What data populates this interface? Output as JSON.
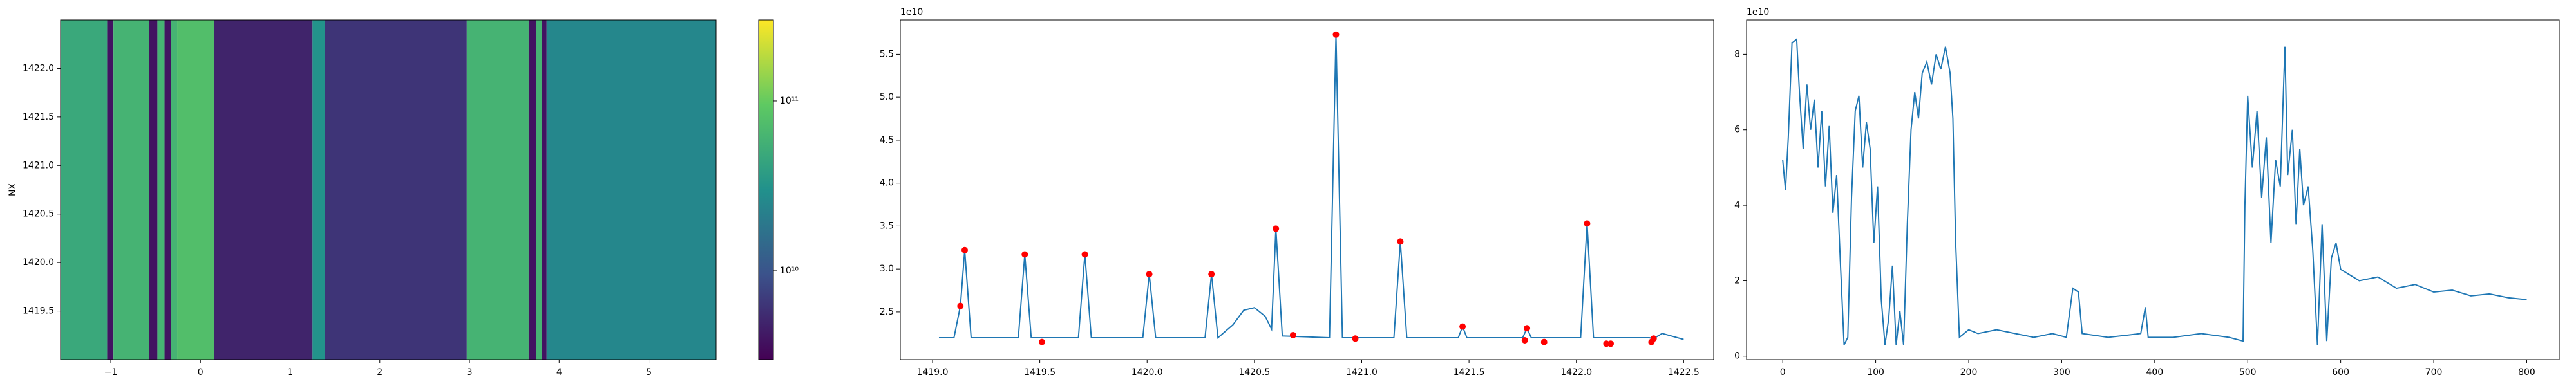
{
  "chart_data": [
    {
      "type": "heatmap",
      "ylabel": "NX",
      "cmap": "viridis",
      "x_edges": [
        -1.56,
        -1.04,
        -0.97,
        -0.57,
        -0.48,
        -0.4,
        -0.33,
        -0.26,
        0.15,
        1.25,
        1.39,
        2.97,
        3.66,
        3.74,
        3.81,
        3.86,
        5.75
      ],
      "values": [
        48000000000.0,
        3900000000.0,
        60000000000.0,
        3900000000.0,
        60000000000.0,
        3900000000.0,
        60000000000.0,
        76000000000.0,
        4900000000.0,
        31000000000.0,
        6200000000.0,
        60000000000.0,
        3900000000.0,
        60000000000.0,
        3900000000.0,
        25000000000.0
      ],
      "xlim": [
        -1.56,
        5.75
      ],
      "xticks": [
        {
          "value": -1,
          "label": "−1"
        },
        0,
        1,
        2,
        3,
        4,
        5
      ],
      "ylim": [
        1419.0,
        1422.5
      ],
      "yticks": [
        1419.5,
        {
          "value": 1420,
          "label": "1420.0"
        },
        1420.5,
        {
          "value": 1421,
          "label": "1421.0"
        },
        1421.5,
        {
          "value": 1422,
          "label": "1422.0"
        }
      ],
      "colorbar": {
        "log": true,
        "clim": [
          3000000000.0,
          300000000000.0
        ],
        "ticks": [
          {
            "value": 10000000000.0,
            "label": "10¹⁰"
          },
          {
            "value": 100000000000.0,
            "label": "10¹¹"
          }
        ]
      }
    },
    {
      "type": "line",
      "y_offset_label": "1e10",
      "color": "#1f77b4",
      "x": [
        1419.03,
        1419.1,
        1419.13,
        1419.15,
        1419.18,
        1419.4,
        1419.43,
        1419.46,
        1419.68,
        1419.71,
        1419.74,
        1419.98,
        1420.01,
        1420.04,
        1420.27,
        1420.3,
        1420.33,
        1420.4,
        1420.45,
        1420.5,
        1420.55,
        1420.58,
        1420.6,
        1420.63,
        1420.85,
        1420.88,
        1420.91,
        1421.15,
        1421.18,
        1421.21,
        1421.45,
        1421.47,
        1421.49,
        1421.75,
        1421.77,
        1421.79,
        1422.02,
        1422.05,
        1422.08,
        1422.34,
        1422.36,
        1422.4,
        1422.5
      ],
      "values": [
        2.2,
        2.2,
        2.57,
        3.22,
        2.2,
        2.2,
        3.17,
        2.2,
        2.2,
        3.17,
        2.2,
        2.2,
        2.94,
        2.2,
        2.2,
        2.94,
        2.2,
        2.35,
        2.52,
        2.55,
        2.45,
        2.3,
        3.47,
        2.22,
        2.2,
        5.73,
        2.2,
        2.2,
        3.32,
        2.2,
        2.2,
        2.33,
        2.2,
        2.2,
        2.31,
        2.2,
        2.2,
        3.53,
        2.2,
        2.2,
        2.19,
        2.25,
        2.18
      ],
      "peaks": {
        "color": "#ff0000",
        "x": [
          1419.13,
          1419.15,
          1419.43,
          1419.51,
          1419.71,
          1420.01,
          1420.3,
          1420.6,
          1420.68,
          1420.88,
          1420.97,
          1421.18,
          1421.47,
          1421.76,
          1421.77,
          1421.85,
          1422.05,
          1422.14,
          1422.16,
          1422.35,
          1422.36
        ],
        "values": [
          2.57,
          3.22,
          3.17,
          2.15,
          3.17,
          2.94,
          2.94,
          3.47,
          2.23,
          5.73,
          2.19,
          3.32,
          2.33,
          2.17,
          2.31,
          2.15,
          3.53,
          2.13,
          2.13,
          2.15,
          2.19
        ]
      },
      "xlim": [
        1418.85,
        1422.64
      ],
      "xticks": [
        {
          "value": 1419,
          "label": "1419.0"
        },
        1419.5,
        {
          "value": 1420,
          "label": "1420.0"
        },
        1420.5,
        {
          "value": 1421,
          "label": "1421.0"
        },
        1421.5,
        {
          "value": 1422,
          "label": "1422.0"
        },
        1422.5
      ],
      "ylim": [
        1.945,
        5.9
      ],
      "yticks": [
        2.5,
        {
          "value": 3,
          "label": "3.0"
        },
        3.5,
        {
          "value": 4,
          "label": "4.0"
        },
        4.5,
        {
          "value": 5,
          "label": "5.0"
        },
        5.5
      ]
    },
    {
      "type": "line",
      "y_offset_label": "1e10",
      "color": "#1f77b4",
      "x": [
        0,
        3,
        6,
        10,
        15,
        18,
        22,
        26,
        30,
        34,
        38,
        42,
        46,
        50,
        54,
        58,
        62,
        66,
        70,
        74,
        78,
        82,
        86,
        90,
        94,
        98,
        102,
        106,
        110,
        114,
        118,
        122,
        126,
        130,
        134,
        138,
        142,
        146,
        150,
        155,
        160,
        165,
        170,
        175,
        180,
        183,
        186,
        190,
        200,
        210,
        230,
        250,
        270,
        290,
        305,
        312,
        318,
        322,
        350,
        385,
        390,
        393,
        420,
        450,
        480,
        495,
        497,
        500,
        505,
        510,
        515,
        520,
        525,
        530,
        535,
        540,
        543,
        548,
        552,
        556,
        560,
        565,
        570,
        575,
        580,
        585,
        590,
        595,
        600,
        620,
        640,
        660,
        680,
        700,
        720,
        740,
        760,
        780,
        800
      ],
      "values": [
        5.2,
        4.4,
        5.8,
        8.3,
        8.4,
        7.0,
        5.5,
        7.2,
        6.0,
        6.8,
        5.0,
        6.5,
        4.5,
        6.1,
        3.8,
        4.8,
        2.5,
        0.3,
        0.5,
        4.2,
        6.5,
        6.9,
        5.0,
        6.2,
        5.5,
        3.0,
        4.5,
        1.5,
        0.3,
        1.0,
        2.4,
        0.3,
        1.2,
        0.3,
        3.5,
        6.0,
        7.0,
        6.3,
        7.5,
        7.8,
        7.2,
        8.0,
        7.6,
        8.2,
        7.5,
        6.3,
        3.0,
        0.5,
        0.7,
        0.6,
        0.7,
        0.6,
        0.5,
        0.6,
        0.5,
        1.8,
        1.7,
        0.6,
        0.5,
        0.6,
        1.3,
        0.5,
        0.5,
        0.6,
        0.5,
        0.4,
        4.0,
        6.9,
        5.0,
        6.5,
        4.2,
        5.8,
        3.0,
        5.2,
        4.5,
        8.2,
        4.8,
        6.0,
        3.5,
        5.5,
        4.0,
        4.5,
        2.8,
        0.3,
        3.5,
        0.4,
        2.6,
        3.0,
        2.3,
        2.0,
        2.1,
        1.8,
        1.9,
        1.7,
        1.75,
        1.6,
        1.65,
        1.55,
        1.5
      ],
      "xlim": [
        -38.9,
        835
      ],
      "xticks": [
        0,
        100,
        200,
        300,
        400,
        500,
        600,
        700,
        800
      ],
      "ylim": [
        -0.09,
        8.91
      ],
      "yticks": [
        0,
        2,
        4,
        6,
        8
      ]
    }
  ]
}
